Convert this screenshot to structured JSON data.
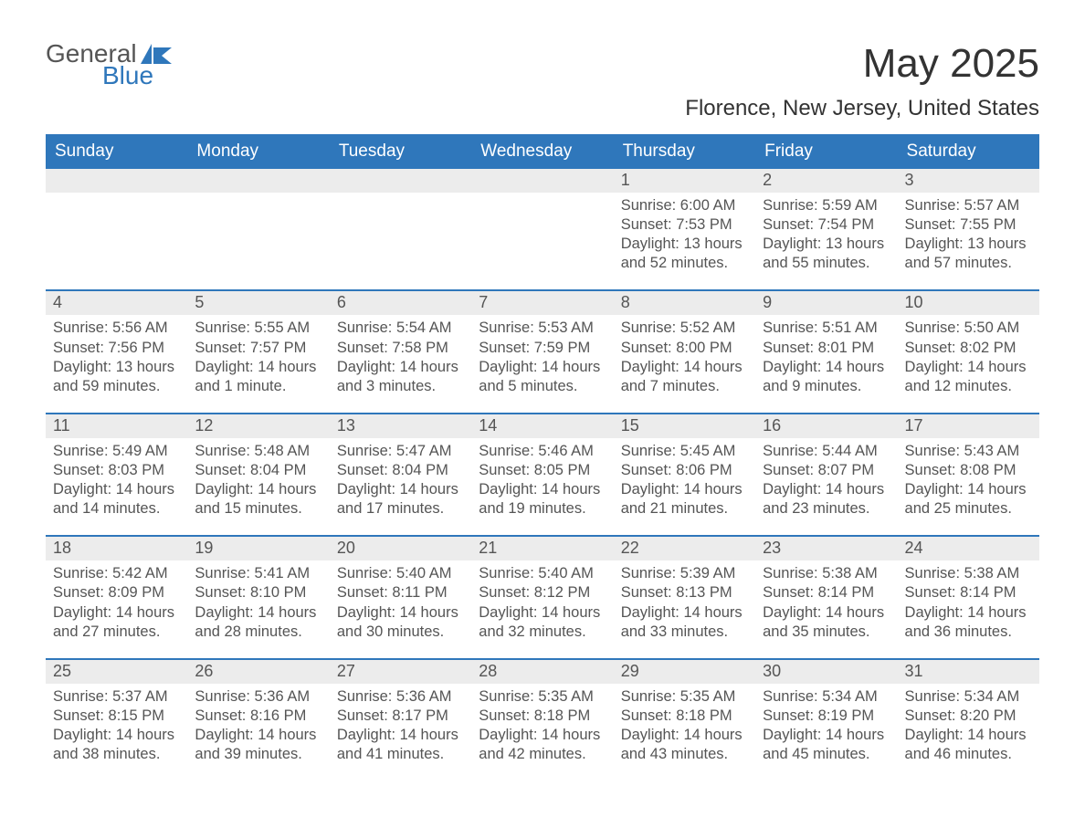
{
  "logo": {
    "word1": "General",
    "word2": "Blue"
  },
  "title": "May 2025",
  "subtitle": "Florence, New Jersey, United States",
  "colors": {
    "header_bg": "#2f77bb",
    "header_text": "#ffffff",
    "date_bg": "#ececec",
    "body_text": "#555555",
    "border": "#2f77bb"
  },
  "days_of_week": [
    "Sunday",
    "Monday",
    "Tuesday",
    "Wednesday",
    "Thursday",
    "Friday",
    "Saturday"
  ],
  "weeks": [
    [
      null,
      null,
      null,
      null,
      {
        "date": "1",
        "sunrise": "Sunrise: 6:00 AM",
        "sunset": "Sunset: 7:53 PM",
        "daylight": "Daylight: 13 hours and 52 minutes."
      },
      {
        "date": "2",
        "sunrise": "Sunrise: 5:59 AM",
        "sunset": "Sunset: 7:54 PM",
        "daylight": "Daylight: 13 hours and 55 minutes."
      },
      {
        "date": "3",
        "sunrise": "Sunrise: 5:57 AM",
        "sunset": "Sunset: 7:55 PM",
        "daylight": "Daylight: 13 hours and 57 minutes."
      }
    ],
    [
      {
        "date": "4",
        "sunrise": "Sunrise: 5:56 AM",
        "sunset": "Sunset: 7:56 PM",
        "daylight": "Daylight: 13 hours and 59 minutes."
      },
      {
        "date": "5",
        "sunrise": "Sunrise: 5:55 AM",
        "sunset": "Sunset: 7:57 PM",
        "daylight": "Daylight: 14 hours and 1 minute."
      },
      {
        "date": "6",
        "sunrise": "Sunrise: 5:54 AM",
        "sunset": "Sunset: 7:58 PM",
        "daylight": "Daylight: 14 hours and 3 minutes."
      },
      {
        "date": "7",
        "sunrise": "Sunrise: 5:53 AM",
        "sunset": "Sunset: 7:59 PM",
        "daylight": "Daylight: 14 hours and 5 minutes."
      },
      {
        "date": "8",
        "sunrise": "Sunrise: 5:52 AM",
        "sunset": "Sunset: 8:00 PM",
        "daylight": "Daylight: 14 hours and 7 minutes."
      },
      {
        "date": "9",
        "sunrise": "Sunrise: 5:51 AM",
        "sunset": "Sunset: 8:01 PM",
        "daylight": "Daylight: 14 hours and 9 minutes."
      },
      {
        "date": "10",
        "sunrise": "Sunrise: 5:50 AM",
        "sunset": "Sunset: 8:02 PM",
        "daylight": "Daylight: 14 hours and 12 minutes."
      }
    ],
    [
      {
        "date": "11",
        "sunrise": "Sunrise: 5:49 AM",
        "sunset": "Sunset: 8:03 PM",
        "daylight": "Daylight: 14 hours and 14 minutes."
      },
      {
        "date": "12",
        "sunrise": "Sunrise: 5:48 AM",
        "sunset": "Sunset: 8:04 PM",
        "daylight": "Daylight: 14 hours and 15 minutes."
      },
      {
        "date": "13",
        "sunrise": "Sunrise: 5:47 AM",
        "sunset": "Sunset: 8:04 PM",
        "daylight": "Daylight: 14 hours and 17 minutes."
      },
      {
        "date": "14",
        "sunrise": "Sunrise: 5:46 AM",
        "sunset": "Sunset: 8:05 PM",
        "daylight": "Daylight: 14 hours and 19 minutes."
      },
      {
        "date": "15",
        "sunrise": "Sunrise: 5:45 AM",
        "sunset": "Sunset: 8:06 PM",
        "daylight": "Daylight: 14 hours and 21 minutes."
      },
      {
        "date": "16",
        "sunrise": "Sunrise: 5:44 AM",
        "sunset": "Sunset: 8:07 PM",
        "daylight": "Daylight: 14 hours and 23 minutes."
      },
      {
        "date": "17",
        "sunrise": "Sunrise: 5:43 AM",
        "sunset": "Sunset: 8:08 PM",
        "daylight": "Daylight: 14 hours and 25 minutes."
      }
    ],
    [
      {
        "date": "18",
        "sunrise": "Sunrise: 5:42 AM",
        "sunset": "Sunset: 8:09 PM",
        "daylight": "Daylight: 14 hours and 27 minutes."
      },
      {
        "date": "19",
        "sunrise": "Sunrise: 5:41 AM",
        "sunset": "Sunset: 8:10 PM",
        "daylight": "Daylight: 14 hours and 28 minutes."
      },
      {
        "date": "20",
        "sunrise": "Sunrise: 5:40 AM",
        "sunset": "Sunset: 8:11 PM",
        "daylight": "Daylight: 14 hours and 30 minutes."
      },
      {
        "date": "21",
        "sunrise": "Sunrise: 5:40 AM",
        "sunset": "Sunset: 8:12 PM",
        "daylight": "Daylight: 14 hours and 32 minutes."
      },
      {
        "date": "22",
        "sunrise": "Sunrise: 5:39 AM",
        "sunset": "Sunset: 8:13 PM",
        "daylight": "Daylight: 14 hours and 33 minutes."
      },
      {
        "date": "23",
        "sunrise": "Sunrise: 5:38 AM",
        "sunset": "Sunset: 8:14 PM",
        "daylight": "Daylight: 14 hours and 35 minutes."
      },
      {
        "date": "24",
        "sunrise": "Sunrise: 5:38 AM",
        "sunset": "Sunset: 8:14 PM",
        "daylight": "Daylight: 14 hours and 36 minutes."
      }
    ],
    [
      {
        "date": "25",
        "sunrise": "Sunrise: 5:37 AM",
        "sunset": "Sunset: 8:15 PM",
        "daylight": "Daylight: 14 hours and 38 minutes."
      },
      {
        "date": "26",
        "sunrise": "Sunrise: 5:36 AM",
        "sunset": "Sunset: 8:16 PM",
        "daylight": "Daylight: 14 hours and 39 minutes."
      },
      {
        "date": "27",
        "sunrise": "Sunrise: 5:36 AM",
        "sunset": "Sunset: 8:17 PM",
        "daylight": "Daylight: 14 hours and 41 minutes."
      },
      {
        "date": "28",
        "sunrise": "Sunrise: 5:35 AM",
        "sunset": "Sunset: 8:18 PM",
        "daylight": "Daylight: 14 hours and 42 minutes."
      },
      {
        "date": "29",
        "sunrise": "Sunrise: 5:35 AM",
        "sunset": "Sunset: 8:18 PM",
        "daylight": "Daylight: 14 hours and 43 minutes."
      },
      {
        "date": "30",
        "sunrise": "Sunrise: 5:34 AM",
        "sunset": "Sunset: 8:19 PM",
        "daylight": "Daylight: 14 hours and 45 minutes."
      },
      {
        "date": "31",
        "sunrise": "Sunrise: 5:34 AM",
        "sunset": "Sunset: 8:20 PM",
        "daylight": "Daylight: 14 hours and 46 minutes."
      }
    ]
  ]
}
